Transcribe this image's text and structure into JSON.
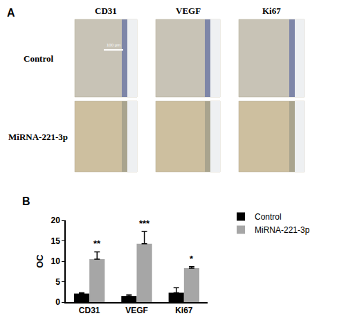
{
  "figure_panels": {
    "A": {
      "panel_label": "A",
      "columns": [
        "CD31",
        "VEGF",
        "Ki67"
      ],
      "rows": [
        "Control",
        "MiRNA-221-3p"
      ],
      "scale_bar": "100 μm"
    }
  },
  "chart_data": {
    "panel_label": "B",
    "type": "bar",
    "categories": [
      "CD31",
      "VEGF",
      "Ki67"
    ],
    "series": [
      {
        "name": "Control",
        "color": "#000000",
        "values": [
          2.1,
          1.5,
          2.3
        ],
        "errors": [
          0.2,
          0.3,
          1.2
        ]
      },
      {
        "name": "MiRNA-221-3p",
        "color": "#a6a6a6",
        "values": [
          10.5,
          14.3,
          8.3
        ],
        "errors": [
          1.8,
          3.0,
          0.4
        ]
      }
    ],
    "y_label": "OC",
    "ylim": [
      0,
      20
    ],
    "yticks": [
      0,
      5,
      10,
      15,
      20
    ],
    "grid": false,
    "legend": "right",
    "annotations": [
      {
        "category": "CD31",
        "text": "**"
      },
      {
        "category": "VEGF",
        "text": "***"
      },
      {
        "category": "Ki67",
        "text": "*"
      }
    ]
  }
}
